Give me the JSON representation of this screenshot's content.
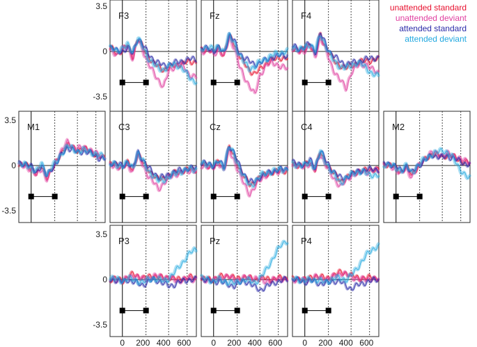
{
  "chart_data": {
    "type": "line",
    "x_unit": "ms",
    "xlim": [
      -120,
      720
    ],
    "ylim": [
      -4.3,
      4.3
    ],
    "x_ticks": [
      0,
      200,
      400,
      600
    ],
    "x_tick_labels": [
      "0",
      "200",
      "400",
      "600"
    ],
    "y_ticks": [
      3.5,
      0,
      -3.5
    ],
    "y_tick_labels": [
      "3.5",
      "0",
      "-3.5"
    ],
    "dotted_lines_x": [
      230,
      450,
      630
    ],
    "stimulus_markers_x": [
      0,
      230
    ],
    "legend": {
      "placement": "top-right",
      "entries": [
        {
          "label": "unattended standard",
          "color": "#e8102e"
        },
        {
          "label": "unattended deviant",
          "color": "#e040a0"
        },
        {
          "label": "attended standard",
          "color": "#2a2aa8"
        },
        {
          "label": "attended deviant",
          "color": "#20a8e0"
        }
      ]
    },
    "series_knots_x": [
      -100,
      -50,
      0,
      50,
      100,
      150,
      200,
      250,
      300,
      350,
      400,
      450,
      500,
      550,
      600,
      650,
      700
    ],
    "panels": [
      {
        "label": "F3",
        "series": [
          [
            0.2,
            -0.2,
            0.1,
            0.5,
            -0.4,
            1.0,
            0.3,
            -0.4,
            -0.9,
            -1.2,
            -1.4,
            -1.3,
            -1.1,
            -1.0,
            -0.9,
            -0.8,
            -0.8
          ],
          [
            0.1,
            -0.3,
            0.2,
            0.4,
            -0.6,
            0.9,
            0.1,
            -1.0,
            -1.6,
            -2.2,
            -2.8,
            -1.5,
            -1.2,
            -1.0,
            -1.2,
            -1.8,
            -2.0
          ],
          [
            0.3,
            0.0,
            0.0,
            0.3,
            -0.2,
            1.1,
            0.5,
            -0.2,
            -0.6,
            -0.9,
            -1.1,
            -1.0,
            -0.9,
            -0.8,
            -0.7,
            -0.6,
            -0.6
          ],
          [
            0.2,
            0.1,
            0.2,
            0.5,
            0.0,
            1.0,
            0.3,
            -0.5,
            -1.0,
            -1.3,
            -1.4,
            -1.2,
            -1.0,
            -1.1,
            -1.5,
            -2.0,
            -2.3
          ]
        ]
      },
      {
        "label": "Fz",
        "series": [
          [
            0.1,
            0.2,
            -0.1,
            0.3,
            -0.3,
            1.2,
            0.6,
            -0.3,
            -1.0,
            -1.5,
            -1.7,
            -1.4,
            -1.0,
            -0.7,
            -0.6,
            -0.5,
            -0.5
          ],
          [
            0.0,
            0.1,
            -0.2,
            0.2,
            -0.5,
            1.1,
            0.3,
            -1.2,
            -2.0,
            -2.7,
            -3.4,
            -1.8,
            -1.2,
            -0.9,
            -0.9,
            -1.2,
            -1.3
          ],
          [
            0.2,
            0.3,
            0.0,
            0.3,
            -0.1,
            1.3,
            0.8,
            -0.1,
            -0.5,
            -0.8,
            -1.0,
            -0.9,
            -0.7,
            -0.5,
            -0.4,
            -0.3,
            -0.3
          ],
          [
            0.2,
            0.4,
            0.1,
            0.4,
            0.0,
            1.2,
            0.7,
            -0.3,
            -0.9,
            -1.3,
            -1.2,
            -0.8,
            -0.6,
            -0.4,
            -0.2,
            -0.1,
            0.0
          ]
        ]
      },
      {
        "label": "F4",
        "series": [
          [
            0.3,
            0.0,
            0.2,
            0.6,
            -0.3,
            1.3,
            0.4,
            -0.3,
            -0.9,
            -1.1,
            -1.3,
            -1.1,
            -0.9,
            -0.8,
            -0.7,
            -0.7,
            -0.6
          ],
          [
            0.2,
            -0.1,
            0.1,
            0.5,
            -0.5,
            1.2,
            0.2,
            -1.0,
            -1.7,
            -2.3,
            -2.9,
            -1.6,
            -1.2,
            -1.0,
            -1.0,
            -1.4,
            -1.6
          ],
          [
            0.4,
            0.2,
            0.3,
            0.7,
            -0.1,
            1.4,
            0.6,
            -0.1,
            -0.5,
            -0.8,
            -1.0,
            -0.9,
            -0.8,
            -0.7,
            -0.6,
            -0.5,
            -0.5
          ],
          [
            0.3,
            0.1,
            0.3,
            0.6,
            0.0,
            1.3,
            0.5,
            -0.4,
            -0.9,
            -1.2,
            -1.3,
            -1.1,
            -0.9,
            -1.0,
            -1.3,
            -1.7,
            -1.9
          ]
        ]
      },
      {
        "label": "M1",
        "series": [
          [
            0.1,
            0.0,
            -0.2,
            -0.6,
            -0.1,
            -0.9,
            -0.3,
            0.3,
            1.1,
            1.6,
            1.4,
            1.2,
            1.3,
            1.2,
            1.0,
            0.7,
            0.6
          ],
          [
            0.0,
            -0.1,
            -0.3,
            -0.8,
            -0.2,
            -1.1,
            -0.4,
            0.5,
            1.2,
            1.8,
            1.5,
            1.3,
            1.4,
            1.3,
            1.1,
            0.8,
            0.7
          ],
          [
            0.2,
            0.1,
            -0.1,
            -0.5,
            0.0,
            -0.8,
            -0.2,
            0.2,
            0.9,
            1.4,
            1.2,
            1.0,
            1.1,
            1.0,
            0.9,
            0.6,
            0.5
          ],
          [
            0.1,
            0.0,
            -0.2,
            -0.4,
            0.1,
            -0.7,
            -0.1,
            0.3,
            1.0,
            1.5,
            1.3,
            1.1,
            1.2,
            1.1,
            1.0,
            0.8,
            0.7
          ]
        ]
      },
      {
        "label": "C3",
        "series": [
          [
            0.1,
            0.0,
            -0.1,
            0.2,
            -0.4,
            1.0,
            0.2,
            -0.3,
            -0.7,
            -1.1,
            -1.0,
            -0.8,
            -0.6,
            -0.5,
            -0.4,
            -0.3,
            -0.3
          ],
          [
            0.0,
            -0.1,
            -0.2,
            0.1,
            -0.5,
            0.9,
            0.0,
            -0.8,
            -1.3,
            -1.8,
            -1.4,
            -1.0,
            -0.7,
            -0.6,
            -0.5,
            -0.4,
            -0.4
          ],
          [
            0.2,
            0.1,
            0.0,
            0.3,
            -0.3,
            1.1,
            0.4,
            -0.2,
            -0.5,
            -0.9,
            -0.9,
            -0.7,
            -0.5,
            -0.4,
            -0.3,
            -0.2,
            -0.2
          ],
          [
            0.1,
            0.0,
            0.0,
            0.2,
            -0.2,
            1.0,
            0.3,
            -0.4,
            -0.8,
            -1.2,
            -1.1,
            -0.9,
            -0.7,
            -0.5,
            -0.4,
            -0.3,
            -0.3
          ]
        ]
      },
      {
        "label": "Cz",
        "series": [
          [
            0.1,
            0.0,
            -0.1,
            0.3,
            -0.3,
            1.4,
            0.7,
            -0.2,
            -0.9,
            -1.5,
            -1.3,
            -0.9,
            -0.7,
            -0.6,
            -0.5,
            -0.4,
            -0.4
          ],
          [
            0.0,
            -0.1,
            -0.2,
            0.2,
            -0.4,
            1.2,
            0.4,
            -0.7,
            -1.5,
            -2.2,
            -1.7,
            -1.1,
            -0.8,
            -0.6,
            -0.5,
            -0.4,
            -0.4
          ],
          [
            0.2,
            0.1,
            0.0,
            0.4,
            -0.2,
            1.6,
            0.9,
            0.0,
            -0.7,
            -1.3,
            -1.2,
            -0.9,
            -0.7,
            -0.5,
            -0.4,
            -0.3,
            -0.3
          ],
          [
            0.1,
            0.1,
            0.0,
            0.3,
            -0.1,
            1.5,
            0.8,
            -0.2,
            -1.0,
            -1.6,
            -1.3,
            -0.8,
            -0.6,
            -0.5,
            -0.4,
            -0.3,
            -0.3
          ]
        ]
      },
      {
        "label": "C4",
        "series": [
          [
            0.1,
            0.0,
            0.0,
            0.3,
            -0.3,
            1.0,
            0.3,
            -0.3,
            -0.8,
            -1.2,
            -1.0,
            -0.7,
            -0.5,
            -0.4,
            -0.4,
            -0.3,
            -0.3
          ],
          [
            0.0,
            -0.1,
            -0.1,
            0.2,
            -0.4,
            0.9,
            0.1,
            -0.7,
            -1.2,
            -1.6,
            -1.2,
            -0.8,
            -0.6,
            -0.5,
            -0.5,
            -0.4,
            -0.4
          ],
          [
            0.2,
            0.1,
            0.1,
            0.4,
            -0.2,
            1.2,
            0.4,
            -0.2,
            -0.6,
            -1.0,
            -0.9,
            -0.7,
            -0.5,
            -0.4,
            -0.3,
            -0.3,
            -0.3
          ],
          [
            0.1,
            0.0,
            0.0,
            0.3,
            -0.2,
            1.1,
            0.3,
            -0.4,
            -0.9,
            -1.3,
            -1.0,
            -0.7,
            -0.5,
            -0.5,
            -0.6,
            -0.7,
            -0.8
          ]
        ]
      },
      {
        "label": "M2",
        "series": [
          [
            0.1,
            0.0,
            -0.2,
            -0.5,
            -0.1,
            -0.7,
            -0.2,
            0.2,
            0.6,
            0.9,
            0.8,
            0.7,
            0.8,
            0.7,
            0.5,
            0.3,
            0.2
          ],
          [
            0.0,
            -0.1,
            -0.3,
            -0.7,
            -0.2,
            -0.9,
            -0.3,
            0.3,
            0.7,
            1.0,
            0.9,
            0.8,
            0.9,
            0.8,
            0.6,
            0.4,
            0.3
          ],
          [
            0.2,
            0.1,
            -0.1,
            -0.4,
            0.0,
            -0.6,
            -0.1,
            0.2,
            0.5,
            0.8,
            0.7,
            0.6,
            0.7,
            0.6,
            0.4,
            0.2,
            0.1
          ],
          [
            0.1,
            0.0,
            -0.2,
            -0.4,
            0.0,
            -0.6,
            -0.1,
            0.3,
            0.6,
            0.9,
            1.0,
            1.2,
            1.0,
            0.6,
            0.0,
            -0.6,
            -1.0
          ]
        ]
      },
      {
        "label": "P3",
        "series": [
          [
            0.0,
            0.1,
            -0.1,
            0.2,
            0.4,
            0.3,
            0.1,
            0.2,
            0.3,
            0.2,
            0.1,
            0.2,
            0.1,
            0.0,
            0.1,
            0.2,
            0.1
          ],
          [
            0.0,
            0.0,
            -0.1,
            0.1,
            0.3,
            0.2,
            0.0,
            0.1,
            0.2,
            0.3,
            0.2,
            0.1,
            0.0,
            -0.1,
            0.0,
            0.1,
            0.0
          ],
          [
            0.0,
            -0.1,
            -0.2,
            0.0,
            -0.2,
            -0.3,
            -0.4,
            -0.2,
            0.0,
            -0.1,
            -0.3,
            -0.5,
            -0.4,
            -0.2,
            -0.1,
            0.0,
            0.0
          ],
          [
            0.1,
            0.0,
            -0.1,
            0.1,
            0.0,
            -0.1,
            -0.2,
            0.0,
            0.1,
            0.0,
            -0.1,
            0.1,
            0.5,
            1.0,
            1.5,
            2.0,
            2.3
          ]
        ]
      },
      {
        "label": "Pz",
        "series": [
          [
            0.0,
            0.1,
            0.0,
            0.2,
            0.3,
            0.3,
            0.1,
            0.1,
            0.2,
            0.1,
            0.0,
            0.1,
            0.1,
            0.0,
            0.1,
            0.1,
            0.1
          ],
          [
            0.0,
            0.0,
            -0.1,
            0.1,
            0.2,
            0.2,
            0.0,
            0.0,
            0.1,
            0.2,
            0.1,
            0.0,
            -0.1,
            -0.1,
            0.0,
            0.1,
            0.0
          ],
          [
            0.0,
            -0.1,
            -0.2,
            -0.1,
            -0.3,
            -0.4,
            -0.5,
            -0.3,
            -0.1,
            -0.3,
            -0.6,
            -0.8,
            -0.6,
            -0.4,
            -0.2,
            -0.1,
            0.0
          ],
          [
            0.1,
            0.0,
            -0.1,
            0.0,
            -0.1,
            -0.2,
            -0.3,
            -0.1,
            0.0,
            -0.1,
            -0.2,
            0.1,
            0.6,
            1.3,
            2.0,
            2.6,
            3.0
          ]
        ]
      },
      {
        "label": "P4",
        "series": [
          [
            0.0,
            0.1,
            0.0,
            0.1,
            0.3,
            0.2,
            0.1,
            0.2,
            0.4,
            0.6,
            0.5,
            0.3,
            0.2,
            0.1,
            0.1,
            0.2,
            0.1
          ],
          [
            0.0,
            0.0,
            -0.1,
            0.0,
            0.2,
            0.1,
            0.0,
            0.1,
            0.3,
            0.5,
            0.4,
            0.2,
            0.1,
            0.0,
            0.0,
            0.1,
            0.0
          ],
          [
            0.0,
            -0.1,
            -0.2,
            -0.1,
            -0.2,
            -0.3,
            -0.3,
            -0.2,
            -0.1,
            -0.2,
            -0.5,
            -0.7,
            -0.5,
            -0.3,
            -0.2,
            -0.1,
            0.0
          ],
          [
            0.1,
            0.0,
            -0.1,
            0.0,
            0.0,
            -0.1,
            -0.2,
            0.0,
            0.1,
            0.1,
            0.0,
            0.3,
            0.8,
            1.4,
            1.9,
            2.3,
            2.6
          ]
        ]
      }
    ]
  }
}
